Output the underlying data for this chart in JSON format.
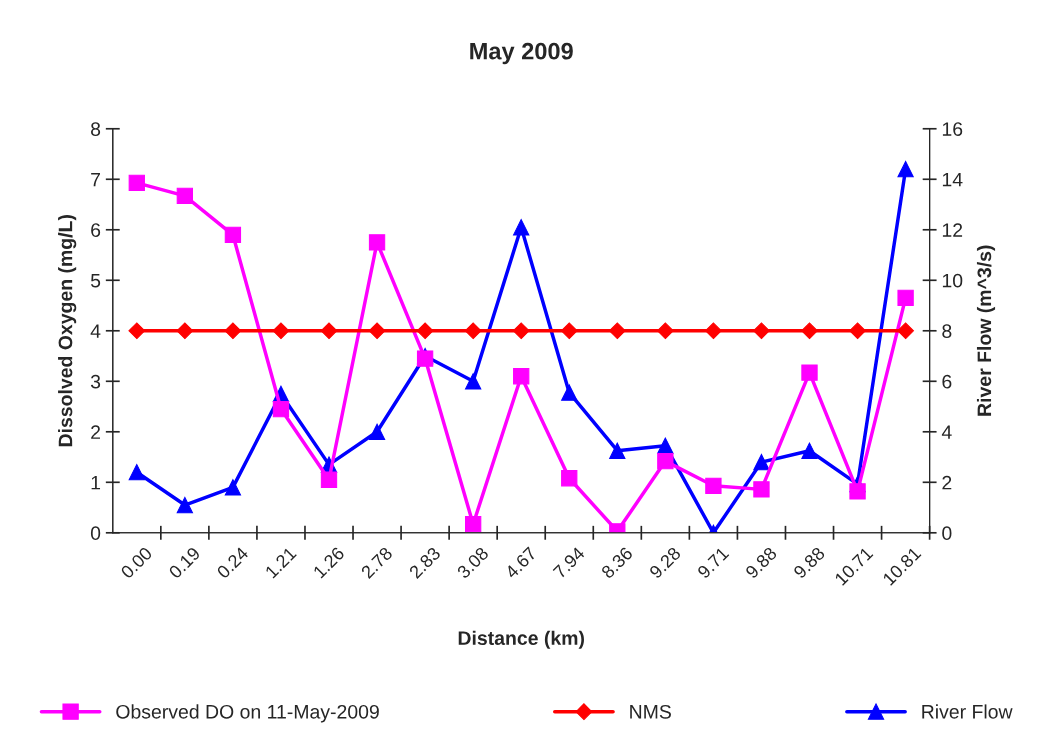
{
  "chart_data": {
    "type": "line",
    "title": "May 2009",
    "xlabel": "Distance (km)",
    "ylabel": "Dissolved Oxygen (mg/L)",
    "y2label": "River Flow (m^3/s)",
    "categories": [
      "0.00",
      "0.19",
      "0.24",
      "1.21",
      "1.26",
      "2.78",
      "2.83",
      "3.08",
      "4.67",
      "7.94",
      "8.36",
      "9.28",
      "9.71",
      "9.88",
      "9.88",
      "10.71",
      "10.81"
    ],
    "series": [
      {
        "name": "Observed DO on 11-May-2009",
        "color": "#ff00ff",
        "marker": "square",
        "values": [
          6.93,
          6.67,
          5.9,
          2.45,
          1.05,
          5.75,
          3.45,
          0.17,
          3.1,
          1.08,
          0.03,
          1.42,
          0.93,
          0.86,
          3.17,
          0.82,
          4.65
        ]
      },
      {
        "name": "NMS",
        "color": "#ff0000",
        "marker": "diamond",
        "values": [
          4,
          4,
          4,
          4,
          4,
          4,
          4,
          4,
          4,
          4,
          4,
          4,
          4,
          4,
          4,
          4,
          4
        ]
      },
      {
        "name": "River Flow",
        "color": "#0000ff",
        "marker": "triangle",
        "axis": "y2",
        "values": [
          2.4,
          1.1,
          1.8,
          5.5,
          2.7,
          4.0,
          7.0,
          6.0,
          12.1,
          5.55,
          3.25,
          3.45,
          0.0,
          2.8,
          3.25,
          1.93,
          14.4
        ]
      }
    ],
    "ylim": [
      0,
      8
    ],
    "yticks": [
      0,
      1,
      2,
      3,
      4,
      5,
      6,
      7,
      8
    ],
    "y2lim": [
      0,
      16
    ],
    "y2ticks": [
      0,
      2,
      4,
      6,
      8,
      10,
      12,
      14,
      16
    ],
    "grid": false,
    "legend": "bottom",
    "line_style": "solid"
  }
}
